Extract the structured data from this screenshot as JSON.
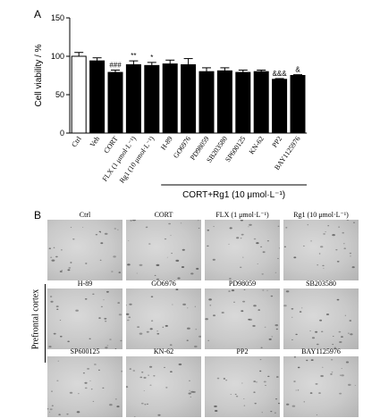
{
  "panel_a": {
    "letter": "A"
  },
  "panel_b": {
    "letter": "B",
    "side_label": "Prefrontal cortex",
    "rows": [
      [
        "Ctrl",
        "CORT",
        "FLX (1 μmol·L⁻¹)",
        "Rg1 (10 μmol·L⁻¹)"
      ],
      [
        "H-89",
        "GO6976",
        "PD98059",
        "SB203580"
      ],
      [
        "SP600125",
        "KN-62",
        "PP2",
        "BAY1125976"
      ]
    ]
  },
  "chart_data": {
    "type": "bar",
    "ylabel": "Cell viability / %",
    "ylim": [
      0,
      150
    ],
    "yticks": [
      0,
      50,
      100,
      150
    ],
    "categories": [
      "Ctrl",
      "Veh",
      "CORT",
      "FLX (1 μmol·L⁻¹)",
      "Rg1 (10 μmol·L⁻¹)",
      "H-89",
      "GO6976",
      "PD98059",
      "SB203580",
      "SP600125",
      "KN-62",
      "PP2",
      "BAY1125976"
    ],
    "values": [
      100,
      94,
      79,
      89,
      88,
      90,
      89,
      80,
      81,
      79,
      80,
      70,
      75
    ],
    "errors": [
      5,
      4,
      3,
      5,
      4,
      5,
      8,
      5,
      4,
      3,
      2,
      1,
      1
    ],
    "fills": [
      "#ffffff",
      "#000000",
      "#000000",
      "#000000",
      "#000000",
      "#000000",
      "#000000",
      "#000000",
      "#000000",
      "#000000",
      "#000000",
      "#000000",
      "#000000"
    ],
    "annotations": [
      "",
      "",
      "###",
      "**",
      "*",
      "",
      "",
      "",
      "",
      "",
      "",
      "&&&",
      "&"
    ],
    "group_label": "CORT+Rg1 (10 μmol·L⁻¹)",
    "group_start_index": 5,
    "group_end_index": 12
  }
}
